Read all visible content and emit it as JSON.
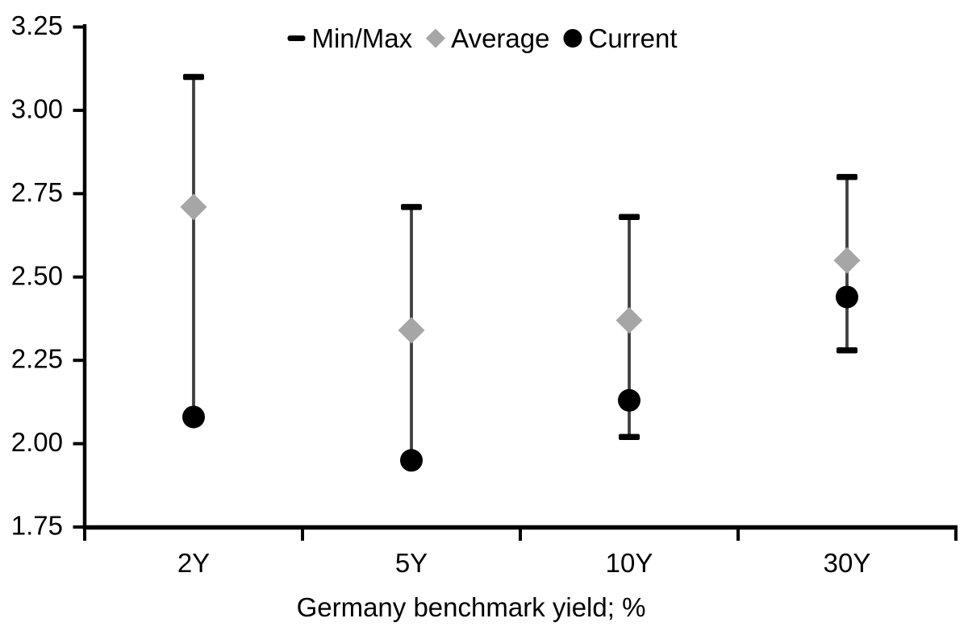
{
  "chart_data": {
    "type": "scatter",
    "subtype": "min-max range bars with average and current markers",
    "categories": [
      "2Y",
      "5Y",
      "10Y",
      "30Y"
    ],
    "series": [
      {
        "name": "Min/Max",
        "marker": "dash",
        "min": [
          2.08,
          1.95,
          2.02,
          2.28
        ],
        "max": [
          3.1,
          2.71,
          2.68,
          2.8
        ]
      },
      {
        "name": "Average",
        "marker": "diamond",
        "values": [
          2.71,
          2.34,
          2.37,
          2.55
        ]
      },
      {
        "name": "Current",
        "marker": "circle",
        "values": [
          2.08,
          1.95,
          2.13,
          2.44
        ]
      }
    ],
    "title": "",
    "xlabel": "Germany benchmark yield; %",
    "ylabel": "",
    "ylim": [
      1.75,
      3.25
    ],
    "y_ticks": [
      "3.25",
      "3.00",
      "2.75",
      "2.50",
      "2.25",
      "2.00",
      "1.75"
    ],
    "grid": false,
    "legend_position": "top-center",
    "legend": [
      {
        "label": "Min/Max",
        "marker": "dash-icon"
      },
      {
        "label": "Average",
        "marker": "diamond-icon"
      },
      {
        "label": "Current",
        "marker": "circle-icon"
      }
    ]
  },
  "colors": {
    "background": "#ffffff",
    "axis": "#000000",
    "text": "#000000",
    "range_line": "#3f3f3f",
    "minmax_cap": "#000000",
    "average_fill": "#a6a6a6",
    "current_fill": "#000000"
  }
}
